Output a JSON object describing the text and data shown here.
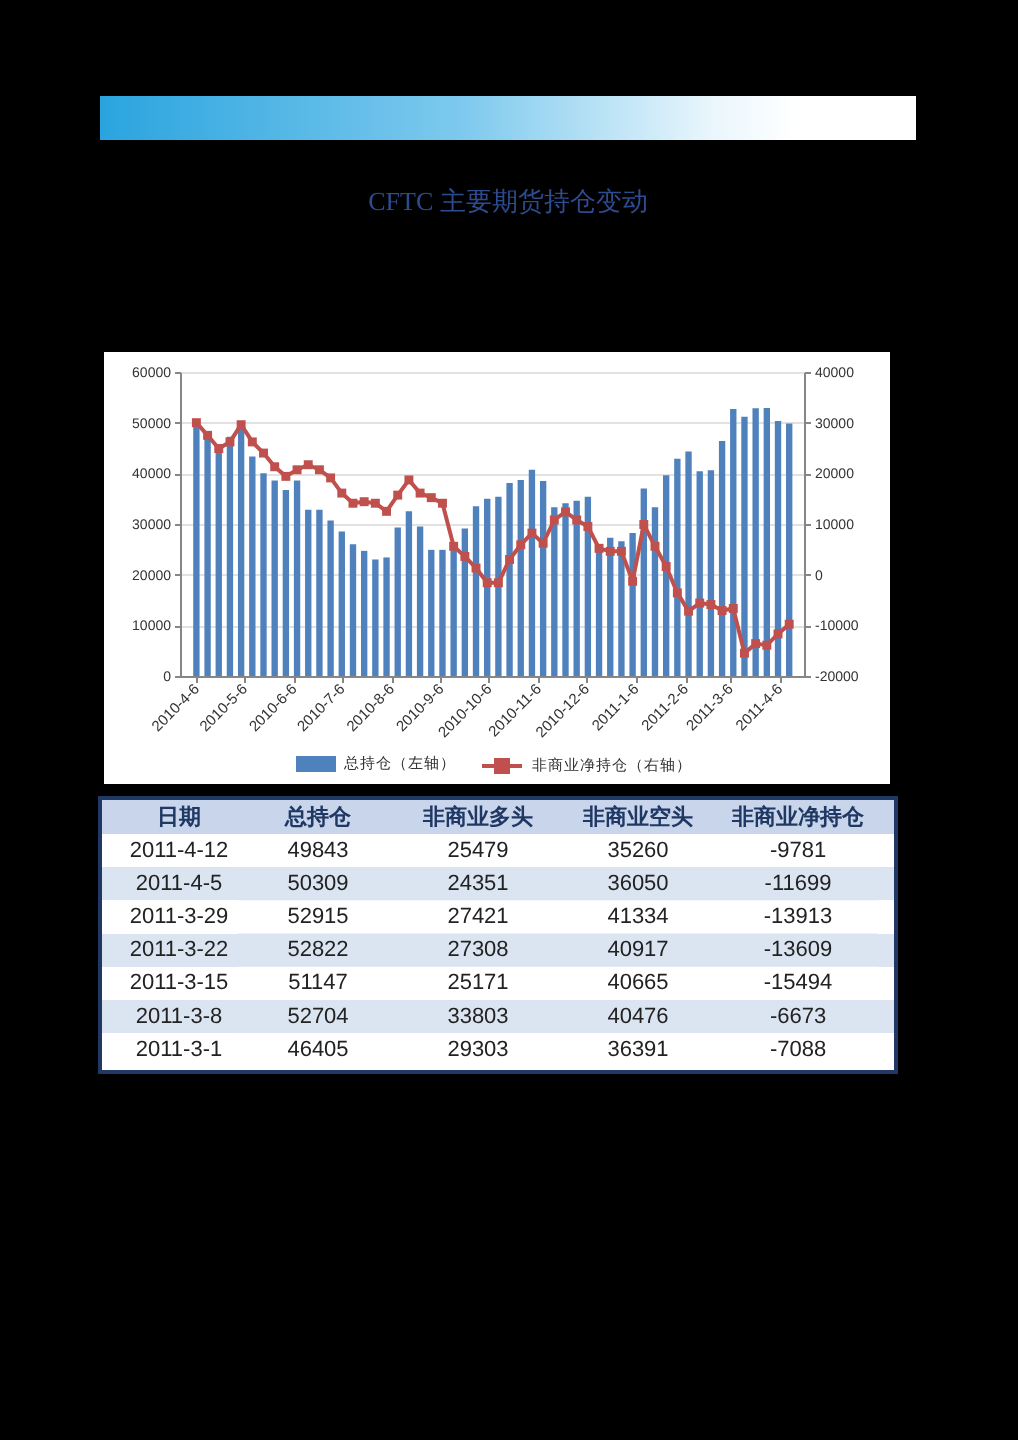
{
  "chart_data": [
    {
      "type": "bar",
      "title": "CFTC 主要期货持仓变动",
      "x": [
        "2010-04-06",
        "2010-04-13",
        "2010-04-20",
        "2010-04-27",
        "2010-05-04",
        "2010-05-11",
        "2010-05-18",
        "2010-05-25",
        "2010-06-01",
        "2010-06-08",
        "2010-06-15",
        "2010-06-22",
        "2010-06-29",
        "2010-07-06",
        "2010-07-13",
        "2010-07-20",
        "2010-07-27",
        "2010-08-03",
        "2010-08-10",
        "2010-08-17",
        "2010-08-24",
        "2010-08-31",
        "2010-09-07",
        "2010-09-14",
        "2010-09-21",
        "2010-09-28",
        "2010-10-05",
        "2010-10-12",
        "2010-10-19",
        "2010-10-26",
        "2010-11-02",
        "2010-11-09",
        "2010-11-16",
        "2010-11-23",
        "2010-11-30",
        "2010-12-07",
        "2010-12-14",
        "2010-12-21",
        "2010-12-28",
        "2011-01-04",
        "2011-01-11",
        "2011-01-18",
        "2011-01-25",
        "2011-02-01",
        "2011-02-08",
        "2011-02-15",
        "2011-02-22",
        "2011-03-01",
        "2011-03-08",
        "2011-03-15",
        "2011-03-22",
        "2011-03-29",
        "2011-04-05",
        "2011-04-12"
      ],
      "xlim": [
        "2010-04-02",
        "2011-04-15"
      ],
      "xticks": [
        {
          "value": "2010-04-06",
          "label": "2010-4-6"
        },
        {
          "value": "2010-05-06",
          "label": "2010-5-6"
        },
        {
          "value": "2010-06-06",
          "label": "2010-6-6"
        },
        {
          "value": "2010-07-06",
          "label": "2010-7-6"
        },
        {
          "value": "2010-08-06",
          "label": "2010-8-6"
        },
        {
          "value": "2010-09-06",
          "label": "2010-9-6"
        },
        {
          "value": "2010-10-06",
          "label": "2010-10-6"
        },
        {
          "value": "2010-11-06",
          "label": "2010-11-6"
        },
        {
          "value": "2010-12-06",
          "label": "2010-12-6"
        },
        {
          "value": "2011-01-06",
          "label": "2011-1-6"
        },
        {
          "value": "2011-02-06",
          "label": "2011-2-6"
        },
        {
          "value": "2011-03-06",
          "label": "2011-3-6"
        },
        {
          "value": "2011-04-06",
          "label": "2011-4-6"
        }
      ],
      "ylim": [
        0,
        60000
      ],
      "yticks": [
        0,
        10000,
        20000,
        30000,
        40000,
        50000,
        60000
      ],
      "y2lim": [
        -20000,
        40000
      ],
      "y2ticks": [
        -20000,
        -10000,
        0,
        10000,
        20000,
        30000,
        40000
      ],
      "series": [
        {
          "name": "总持仓（左轴）",
          "color": "#4f81bd",
          "values": [
            49800,
            47200,
            44600,
            47200,
            48800,
            43300,
            40000,
            38600,
            36700,
            38600,
            32800,
            32800,
            30700,
            28500,
            26000,
            24700,
            23000,
            23400,
            29300,
            32500,
            29500,
            24900,
            24900,
            25000,
            29100,
            33500,
            35000,
            35400,
            38100,
            38700,
            40700,
            38500,
            33300,
            34100,
            34600,
            35400,
            24900,
            27300,
            26600,
            28200,
            37000,
            33300,
            39600,
            42900,
            44300,
            40400,
            40600,
            46405,
            52704,
            51147,
            52822,
            52915,
            50309,
            49843
          ]
        },
        {
          "name": "非商业净持仓（右轴）",
          "type": "line",
          "axis": "y2",
          "color": "#c0504d",
          "values": [
            30000,
            27500,
            24900,
            26200,
            29600,
            26200,
            24000,
            21300,
            19400,
            20700,
            21700,
            20700,
            19100,
            16100,
            14100,
            14400,
            14100,
            12500,
            15700,
            18700,
            16100,
            15200,
            14100,
            5600,
            3600,
            1300,
            -1600,
            -1600,
            3000,
            5900,
            8200,
            6200,
            10800,
            12400,
            10800,
            9500,
            5200,
            4600,
            4600,
            -1300,
            9900,
            5600,
            1600,
            -3600,
            -7200,
            -5600,
            -5900,
            -7088,
            -6673,
            -15494,
            -13609,
            -13913,
            -11699,
            -9781
          ]
        }
      ],
      "grid": "y",
      "legend": "bottom",
      "marker": "square"
    },
    {
      "type": "heatmap",
      "ylabel": "日期",
      "categories": [
        "总持仓",
        "非商业多头",
        "非商业空头",
        "非商业净持仓"
      ],
      "y_categories": [
        "2011-4-12",
        "2011-4-5",
        "2011-3-29",
        "2011-3-22",
        "2011-3-15",
        "2011-3-8",
        "2011-3-1"
      ],
      "cells": [
        [
          49843,
          25479,
          35260,
          -9781
        ],
        [
          50309,
          24351,
          36050,
          -11699
        ],
        [
          52915,
          27421,
          41334,
          -13913
        ],
        [
          52822,
          27308,
          40917,
          -13609
        ],
        [
          51147,
          25171,
          40665,
          -15494
        ],
        [
          52704,
          33803,
          40476,
          -6673
        ],
        [
          46405,
          29303,
          36391,
          -7088
        ]
      ],
      "data_labels": true
    }
  ]
}
